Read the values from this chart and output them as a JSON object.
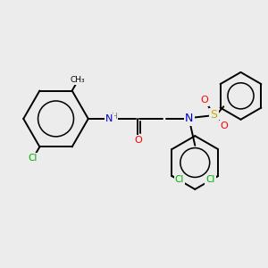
{
  "bg_color": "#ececec",
  "atom_colors": {
    "C": "#000000",
    "N": "#0000cc",
    "O": "#ff0000",
    "S": "#ccaa00",
    "Cl": "#00aa00",
    "H": "#777777"
  },
  "bond_color": "#000000",
  "bond_width": 1.4
}
